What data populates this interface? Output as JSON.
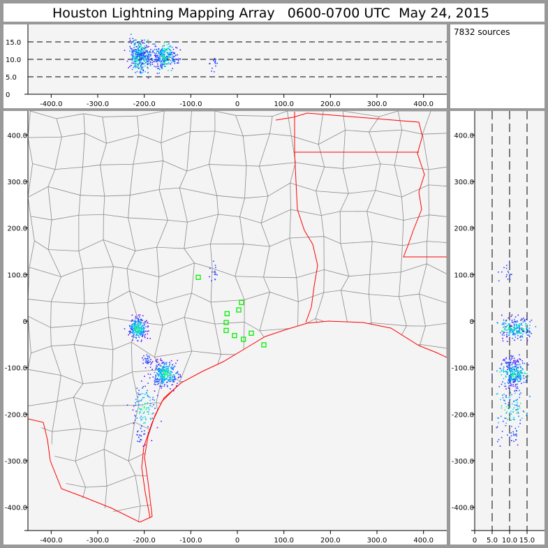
{
  "header": {
    "title": "Houston Lightning Mapping Array   0600-0700 UTC  May 24, 2015"
  },
  "info": {
    "source_count": "7832 sources"
  },
  "colors": {
    "border": "#999999",
    "plot_bg": "#f4f4f4",
    "coast": "#ff0000",
    "counties": "#808080",
    "station": "#00ff00"
  },
  "chart_data": {
    "type": "scatter",
    "title": "Houston Lightning Mapping Array   0600-0700 UTC  May 24, 2015",
    "panels": [
      {
        "name": "altitude-vs-east",
        "xlim": [
          -450,
          450
        ],
        "ylim": [
          0,
          20
        ],
        "xticks": [
          "-400.0",
          "-300.0",
          "-200.0",
          "-100.0",
          "0",
          "100.0",
          "200.0",
          "300.0",
          "400.0"
        ],
        "yticks": [
          "0",
          "5.0",
          "10.0",
          "15.0"
        ],
        "dashed_lines": [
          5,
          10,
          15
        ]
      },
      {
        "name": "plan-view",
        "xlim": [
          -450,
          450
        ],
        "ylim": [
          -450,
          450
        ],
        "xticks": [
          "-400.0",
          "-300.0",
          "-200.0",
          "-100.0",
          "0",
          "100.0",
          "200.0",
          "300.0",
          "400.0"
        ],
        "yticks": [
          "400.0",
          "300.0",
          "200.0",
          "100.0",
          "0",
          "-100.0",
          "-200.0",
          "-300.0",
          "-400.0"
        ]
      },
      {
        "name": "north-vs-altitude",
        "xlim": [
          0,
          20
        ],
        "ylim": [
          -450,
          450
        ],
        "xticks": [
          "0",
          "5.0",
          "10.0",
          "15.0"
        ],
        "yticks": [
          "400.0",
          "300.0",
          "200.0",
          "100.0",
          "0",
          "-100.0",
          "-200.0",
          "-300.0",
          "-400.0"
        ],
        "dashed_lines": [
          5,
          10,
          15
        ]
      }
    ],
    "source_clusters": [
      {
        "x": -215,
        "y": -15,
        "alt": 11.5,
        "sx": 10,
        "sy": 12,
        "sz": 2.0,
        "n": 900
      },
      {
        "x": -155,
        "y": -112,
        "alt": 11.0,
        "sx": 14,
        "sy": 14,
        "sz": 1.6,
        "n": 1100
      },
      {
        "x": -195,
        "y": -82,
        "alt": 10.5,
        "sx": 5,
        "sy": 6,
        "sz": 1.5,
        "n": 120
      },
      {
        "x": -200,
        "y": -185,
        "alt": 10.5,
        "sx": 12,
        "sy": 30,
        "sz": 2.2,
        "n": 420
      },
      {
        "x": -210,
        "y": -245,
        "alt": 10.0,
        "sx": 6,
        "sy": 14,
        "sz": 2.0,
        "n": 90
      },
      {
        "x": -52,
        "y": 105,
        "alt": 9.5,
        "sx": 4,
        "sy": 12,
        "sz": 1.5,
        "n": 60
      }
    ],
    "stations": [
      {
        "x": -84,
        "y": 94
      },
      {
        "x": -22,
        "y": 16
      },
      {
        "x": 9,
        "y": 40
      },
      {
        "x": 3,
        "y": 24
      },
      {
        "x": -24,
        "y": -3
      },
      {
        "x": -24,
        "y": -20
      },
      {
        "x": -6,
        "y": -31
      },
      {
        "x": 30,
        "y": -26
      },
      {
        "x": 13,
        "y": -39
      },
      {
        "x": 57,
        "y": -51
      }
    ]
  }
}
